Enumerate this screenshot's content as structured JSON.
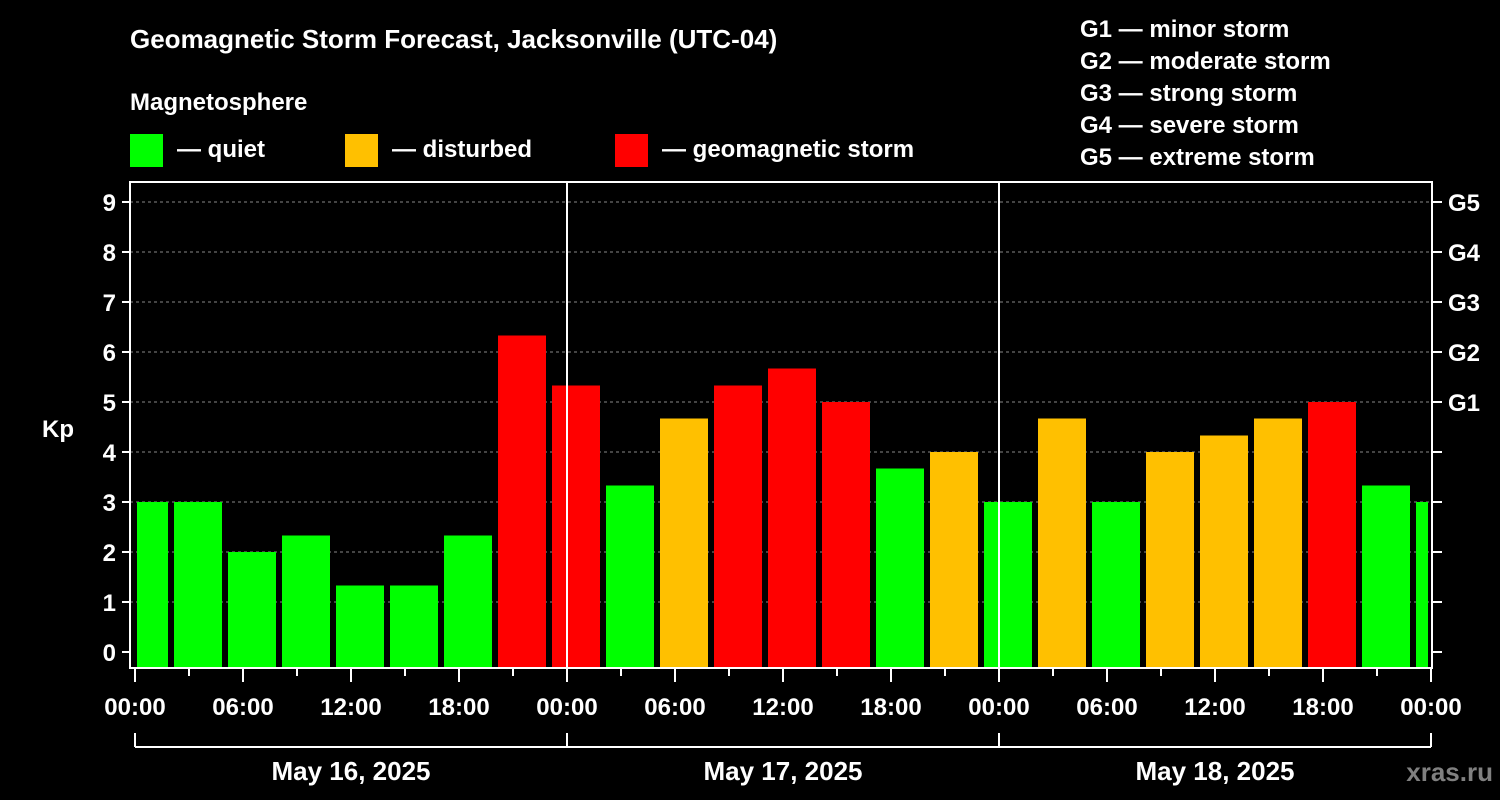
{
  "chart_data": {
    "type": "bar",
    "title": "Geomagnetic Storm Forecast, Jacksonville (UTC-04)",
    "legend_title": "Magnetosphere",
    "legend": [
      {
        "label": "— quiet",
        "color": "#00ff00"
      },
      {
        "label": "— disturbed",
        "color": "#ffc000"
      },
      {
        "label": "— geomagnetic storm",
        "color": "#ff0000"
      }
    ],
    "scale_legend": [
      "G1 — minor storm",
      "G2 — moderate storm",
      "G3 — strong storm",
      "G4 — severe storm",
      "G5 — extreme storm"
    ],
    "ylabel": "Kp",
    "ylim": [
      0,
      9
    ],
    "yticks": [
      "0",
      "1",
      "2",
      "3",
      "4",
      "5",
      "6",
      "7",
      "8",
      "9"
    ],
    "right_ticks": [
      {
        "kp": 5,
        "label": "G1"
      },
      {
        "kp": 6,
        "label": "G2"
      },
      {
        "kp": 7,
        "label": "G3"
      },
      {
        "kp": 8,
        "label": "G4"
      },
      {
        "kp": 9,
        "label": "G5"
      }
    ],
    "xticks": [
      "00:00",
      "06:00",
      "12:00",
      "18:00",
      "00:00",
      "06:00",
      "12:00",
      "18:00",
      "00:00",
      "06:00",
      "12:00",
      "18:00",
      "00:00"
    ],
    "days": [
      "May 16, 2025",
      "May 17, 2025",
      "May 18, 2025"
    ],
    "bar_center_hours": [
      0.5,
      3.5,
      6.5,
      9.5,
      12.5,
      15.5,
      18.5,
      21.5,
      24.5,
      27.5,
      30.5,
      33.5,
      36.5,
      39.5,
      42.5,
      45.5,
      48.5,
      51.5,
      54.5,
      57.5,
      60.5,
      63.5,
      66.5,
      69.5,
      72.5
    ],
    "values": [
      3,
      3,
      2,
      2.33,
      1.33,
      1.33,
      2.33,
      6.33,
      5.33,
      3.33,
      4.67,
      5.33,
      5.67,
      5,
      3.67,
      4,
      3,
      4.67,
      3,
      4,
      4.33,
      4.67,
      5,
      3.33,
      3
    ],
    "categories_status": [
      "quiet",
      "quiet",
      "quiet",
      "quiet",
      "quiet",
      "quiet",
      "quiet",
      "storm",
      "storm",
      "quiet",
      "disturbed",
      "storm",
      "storm",
      "storm",
      "quiet",
      "disturbed",
      "quiet",
      "disturbed",
      "quiet",
      "disturbed",
      "disturbed",
      "disturbed",
      "storm",
      "quiet",
      "quiet"
    ],
    "grid": true
  },
  "watermark": "xras.ru"
}
